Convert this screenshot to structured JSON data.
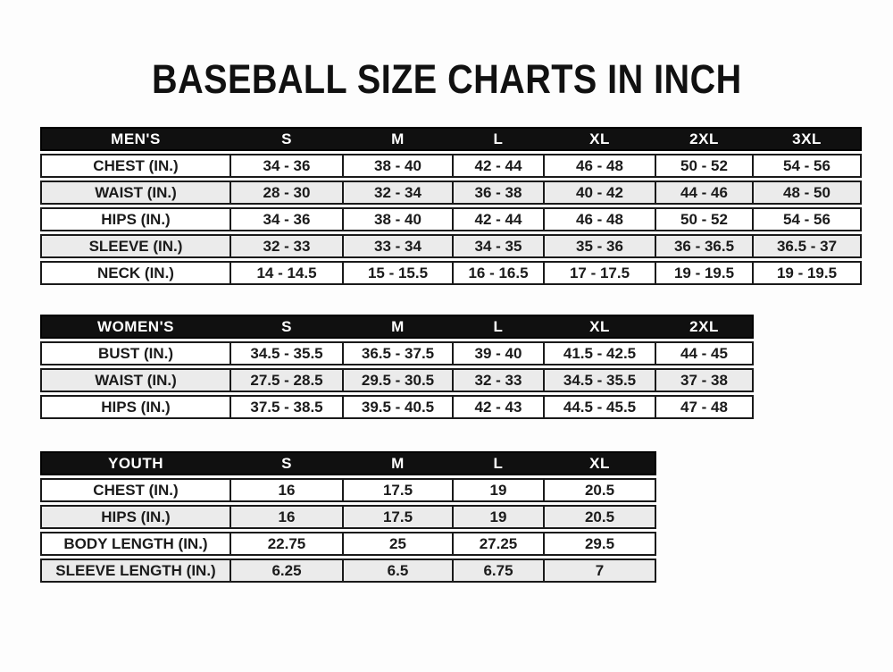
{
  "page_title": "BASEBALL SIZE CHARTS IN INCH",
  "colors": {
    "page_bg": "#fdfdfd",
    "header_bg": "#101010",
    "header_text": "#ffffff",
    "row_bg": "#ffffff",
    "row_alt_bg": "#ebebeb",
    "border": "#1a1a1a",
    "text": "#1b1b1b",
    "title_color": "#111111"
  },
  "chart_data": [
    {
      "type": "table",
      "name": "mens",
      "title": "MEN'S",
      "columns": [
        "MEN'S",
        "S",
        "M",
        "L",
        "XL",
        "2XL",
        "3XL"
      ],
      "rows": [
        [
          "CHEST (IN.)",
          "34 - 36",
          "38 - 40",
          "42 - 44",
          "46 - 48",
          "50 - 52",
          "54 - 56"
        ],
        [
          "WAIST (IN.)",
          "28 - 30",
          "32 - 34",
          "36 - 38",
          "40 - 42",
          "44 - 46",
          "48 - 50"
        ],
        [
          "HIPS (IN.)",
          "34 - 36",
          "38 - 40",
          "42 - 44",
          "46 - 48",
          "50 - 52",
          "54 - 56"
        ],
        [
          "SLEEVE (IN.)",
          "32 - 33",
          "33 - 34",
          "34 - 35",
          "35 - 36",
          "36 - 36.5",
          "36.5 - 37"
        ],
        [
          "NECK (IN.)",
          "14 - 14.5",
          "15 - 15.5",
          "16 - 16.5",
          "17 - 17.5",
          "19 - 19.5",
          "19 - 19.5"
        ]
      ]
    },
    {
      "type": "table",
      "name": "womens",
      "title": "WOMEN'S",
      "columns": [
        "WOMEN'S",
        "S",
        "M",
        "L",
        "XL",
        "2XL"
      ],
      "rows": [
        [
          "BUST (IN.)",
          "34.5 - 35.5",
          "36.5 - 37.5",
          "39 - 40",
          "41.5 - 42.5",
          "44 - 45"
        ],
        [
          "WAIST (IN.)",
          "27.5 - 28.5",
          "29.5 - 30.5",
          "32 - 33",
          "34.5 - 35.5",
          "37 - 38"
        ],
        [
          "HIPS (IN.)",
          "37.5 - 38.5",
          "39.5 - 40.5",
          "42 - 43",
          "44.5 - 45.5",
          "47 - 48"
        ]
      ]
    },
    {
      "type": "table",
      "name": "youth",
      "title": "YOUTH",
      "columns": [
        "YOUTH",
        "S",
        "M",
        "L",
        "XL"
      ],
      "rows": [
        [
          "CHEST (IN.)",
          "16",
          "17.5",
          "19",
          "20.5"
        ],
        [
          "HIPS (IN.)",
          "16",
          "17.5",
          "19",
          "20.5"
        ],
        [
          "BODY LENGTH (IN.)",
          "22.75",
          "25",
          "27.25",
          "29.5"
        ],
        [
          "SLEEVE LENGTH (IN.)",
          "6.25",
          "6.5",
          "6.75",
          "7"
        ]
      ]
    }
  ]
}
